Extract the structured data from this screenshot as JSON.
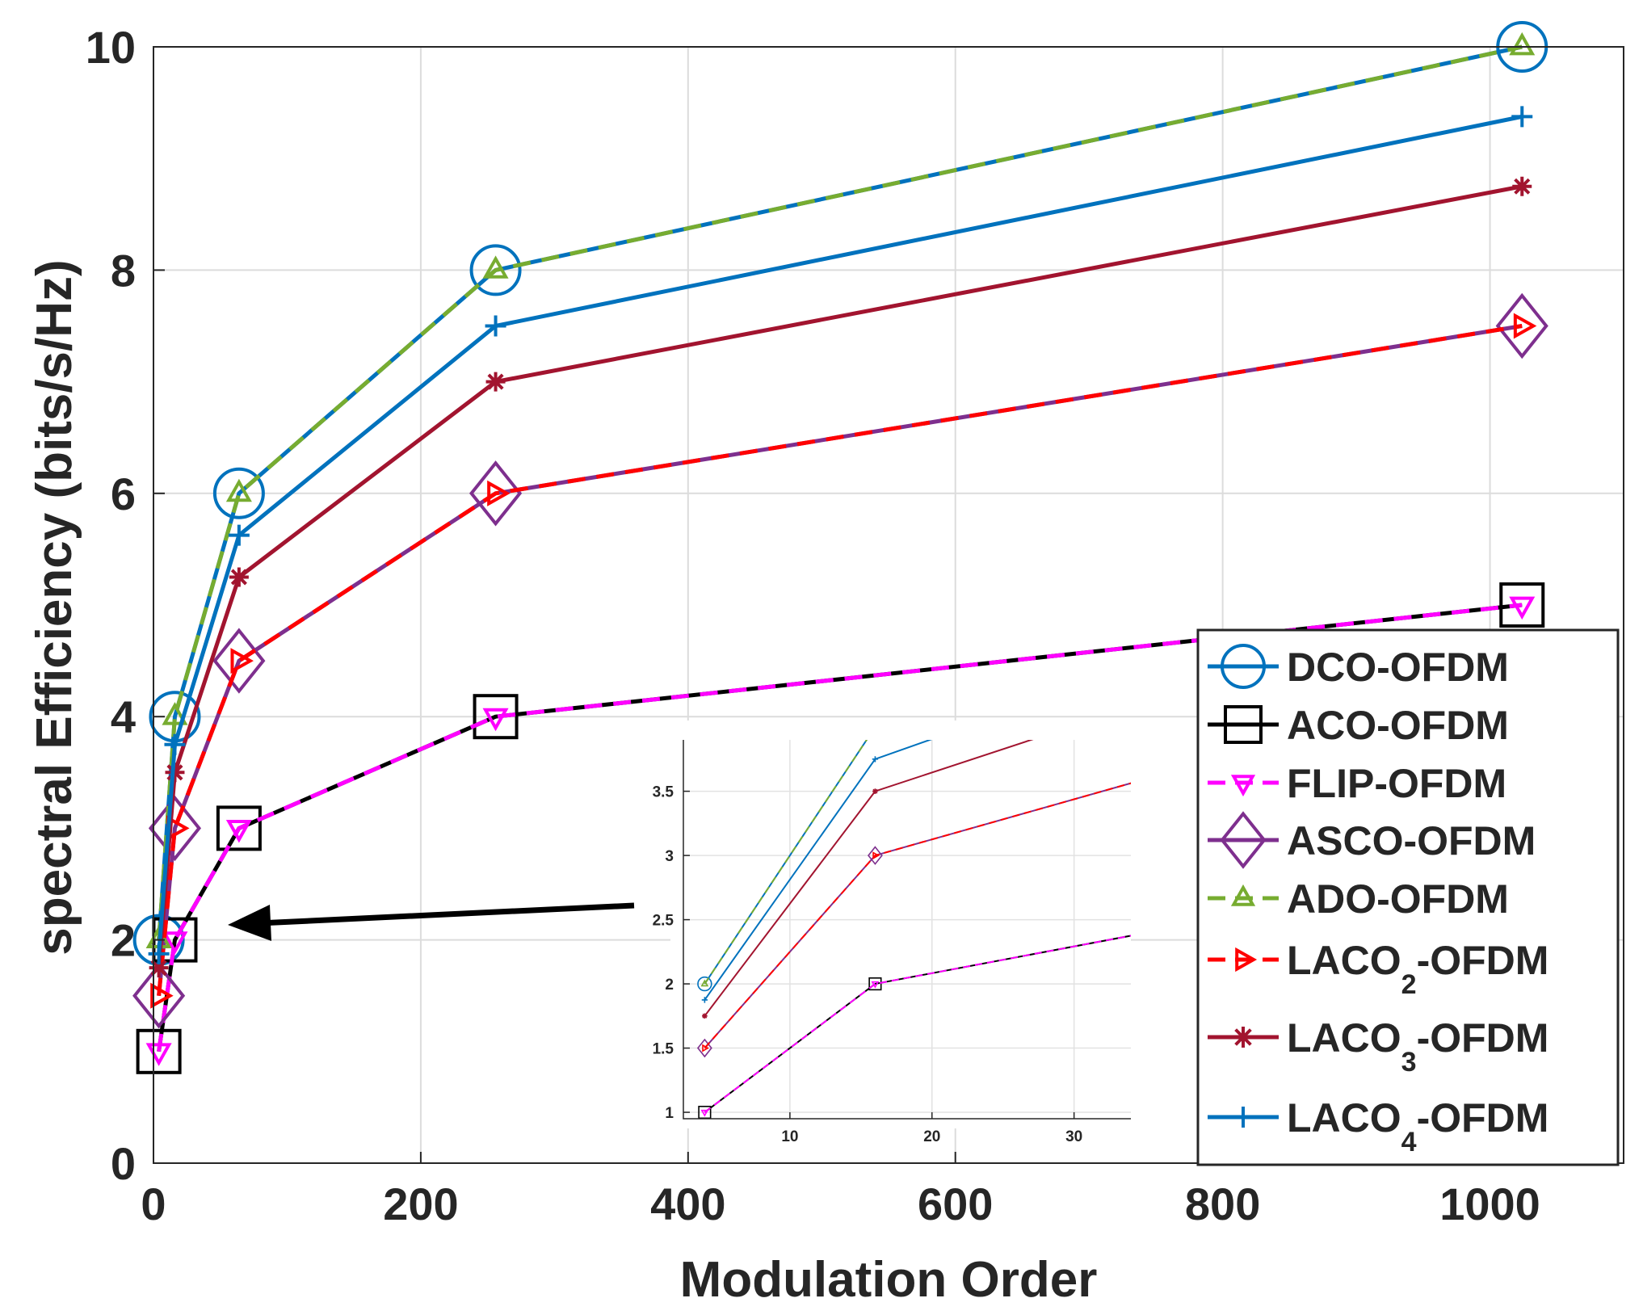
{
  "chart_data": {
    "type": "line",
    "title": "",
    "xlabel": "Modulation Order",
    "ylabel": "spectral Efficiency (bits/s/Hz)",
    "xlim": [
      0,
      1100
    ],
    "ylim": [
      0,
      10
    ],
    "x_ticks": [
      0,
      200,
      400,
      600,
      800,
      1000
    ],
    "y_ticks": [
      0,
      2,
      4,
      6,
      8,
      10
    ],
    "grid": true,
    "legend_position": "bottom-right",
    "series": [
      {
        "name": "DCO-OFDM",
        "sub": "",
        "color": "#0072BD",
        "dash": "",
        "marker": "circle",
        "markerSize": 30,
        "x": [
          4,
          16,
          64,
          256,
          1024
        ],
        "y": [
          2,
          4,
          6,
          8,
          10
        ]
      },
      {
        "name": "ACO-OFDM",
        "sub": "",
        "color": "#000000",
        "dash": "",
        "marker": "square",
        "markerSize": 26,
        "x": [
          4,
          16,
          64,
          256,
          1024
        ],
        "y": [
          1,
          2,
          3,
          4,
          5
        ]
      },
      {
        "name": "FLIP-OFDM",
        "sub": "",
        "color": "#FF00FF",
        "dash": "22,14",
        "marker": "triangle-down",
        "markerSize": 14,
        "x": [
          4,
          16,
          64,
          256,
          1024
        ],
        "y": [
          1,
          2,
          3,
          4,
          5
        ]
      },
      {
        "name": "ASCO-OFDM",
        "sub": "",
        "color": "#7E2F8E",
        "dash": "",
        "marker": "diamond",
        "markerSize": 30,
        "x": [
          4,
          16,
          64,
          256,
          1024
        ],
        "y": [
          1.5,
          3,
          4.5,
          6,
          7.5
        ]
      },
      {
        "name": "ADO-OFDM",
        "sub": "",
        "color": "#77AC30",
        "dash": "22,14",
        "marker": "triangle-up",
        "markerSize": 14,
        "x": [
          4,
          16,
          64,
          256,
          1024
        ],
        "y": [
          2,
          4,
          6,
          8,
          10
        ]
      },
      {
        "name": "LACO",
        "sub": "2",
        "suffix": "-OFDM",
        "color": "#FF0000",
        "dash": "22,14",
        "marker": "triangle-right",
        "markerSize": 14,
        "x": [
          4,
          16,
          64,
          256,
          1024
        ],
        "y": [
          1.5,
          3,
          4.5,
          6,
          7.5
        ]
      },
      {
        "name": "LACO",
        "sub": "3",
        "suffix": "-OFDM",
        "color": "#A2142F",
        "dash": "",
        "marker": "star",
        "markerSize": 12,
        "x": [
          4,
          16,
          64,
          256,
          1024
        ],
        "y": [
          1.75,
          3.5,
          5.25,
          7,
          8.75
        ]
      },
      {
        "name": "LACO",
        "sub": "4",
        "suffix": "-OFDM",
        "color": "#0072BD",
        "dash": "",
        "marker": "plus",
        "markerSize": 13,
        "x": [
          4,
          16,
          64,
          256,
          1024
        ],
        "y": [
          1.875,
          3.75,
          5.625,
          7.5,
          9.375
        ]
      }
    ],
    "inset": {
      "xlim": [
        2.5,
        34
      ],
      "ylim": [
        0.95,
        3.9
      ],
      "x_ticks": [
        10,
        20,
        30
      ],
      "y_ticks": [
        1,
        1.5,
        2,
        2.5,
        3,
        3.5
      ]
    }
  }
}
